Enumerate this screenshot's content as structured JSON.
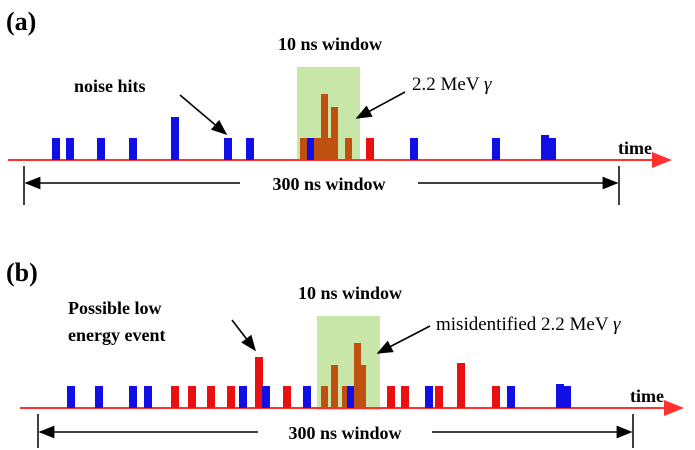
{
  "panels": [
    {
      "id": "a",
      "label": "(a)",
      "window_label": "10 ns window",
      "span_label": "300 ns window",
      "time_label": "time",
      "annotations": [
        {
          "text": "noise hits"
        },
        {
          "text": "2.2 MeV "
        }
      ],
      "gamma_symbol": "γ",
      "colors": {
        "noise": "#1010e6",
        "candidate": "#c05010",
        "flag": "#e81010",
        "window": "#c8e6a8",
        "axis": "#ff3030"
      }
    },
    {
      "id": "b",
      "label": "(b)",
      "window_label": "10 ns window",
      "span_label": "300 ns window",
      "time_label": "time",
      "annotations": [
        {
          "text": "Possible low"
        },
        {
          "text": "energy event"
        },
        {
          "text": "misidentified 2.2 MeV "
        }
      ],
      "gamma_symbol": "γ"
    }
  ]
}
